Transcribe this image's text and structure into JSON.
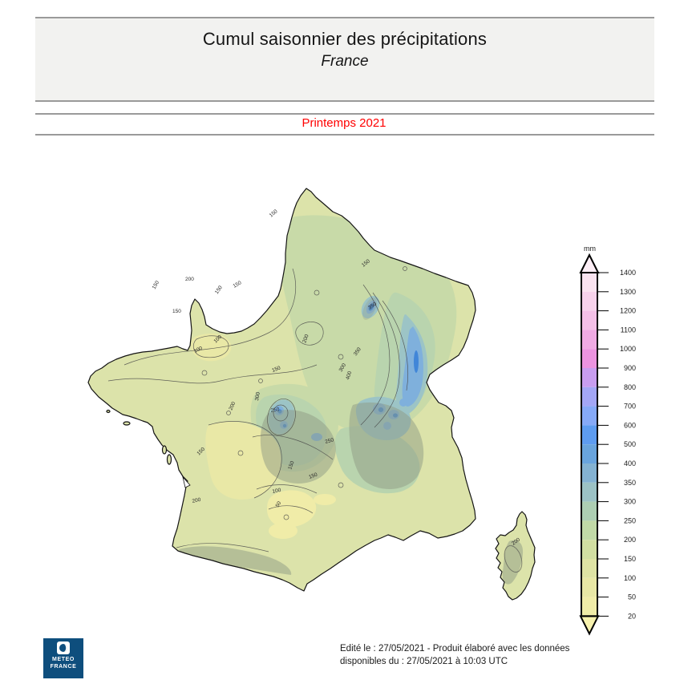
{
  "header": {
    "title": "Cumul saisonnier des précipitations",
    "subtitle": "France"
  },
  "period_label": "Printemps 2021",
  "legend": {
    "unit": "mm",
    "ticks": [
      "1400",
      "1300",
      "1200",
      "1100",
      "1000",
      "900",
      "800",
      "700",
      "600",
      "500",
      "400",
      "350",
      "300",
      "250",
      "200",
      "150",
      "100",
      "50",
      "20"
    ],
    "segment_colors": [
      "#fae3f0",
      "#f7d2eb",
      "#f4c0e7",
      "#f0aae3",
      "#eb93df",
      "#c89def",
      "#a3a6f5",
      "#86a9f7",
      "#5e9cf0",
      "#69a4dd",
      "#84b2d2",
      "#9cc2c5",
      "#adceb3",
      "#c1daa7",
      "#d2dfa2",
      "#dee3a4",
      "#e8e7a5",
      "#f0eca8"
    ],
    "arrow_top_color": "#fdeef6",
    "arrow_bottom_color": "#f7f2ae"
  },
  "map": {
    "contour_labels": [
      "150",
      "150",
      "200",
      "150",
      "150",
      "150",
      "100",
      "100",
      "150",
      "200",
      "150",
      "350",
      "350",
      "400",
      "300",
      "250",
      "300",
      "250",
      "150",
      "200",
      "150",
      "100",
      "50",
      "150",
      "200",
      "200"
    ]
  },
  "footer": {
    "line1": "Edité le : 27/05/2021 - Produit élaboré avec les données",
    "line2": "disponibles du : 27/05/2021 à 10:03 UTC"
  },
  "logo": {
    "line1": "METEO",
    "line2": "FRANCE"
  },
  "colors": {
    "period_text": "#ff0000",
    "land_base": "#dce3aa",
    "logo_background": "#0e4e7d"
  }
}
